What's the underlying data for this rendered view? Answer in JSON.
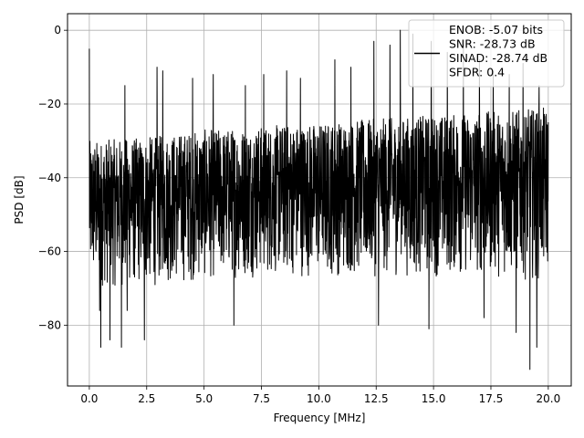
{
  "chart_data": {
    "type": "line",
    "title": "",
    "xlabel": "Frequency [MHz]",
    "ylabel": "PSD [dB]",
    "xlim": [
      -0.95,
      21.0
    ],
    "ylim": [
      -96.5,
      4.5
    ],
    "xticks": [
      0.0,
      2.5,
      5.0,
      7.5,
      10.0,
      12.5,
      15.0,
      17.5,
      20.0
    ],
    "xtick_labels": [
      "0.0",
      "2.5",
      "5.0",
      "7.5",
      "10.0",
      "12.5",
      "15.0",
      "17.5",
      "20.0"
    ],
    "yticks": [
      0,
      -20,
      -40,
      -60,
      -80
    ],
    "ytick_labels": [
      "0",
      "−20",
      "−40",
      "−60",
      "−80"
    ],
    "grid": true,
    "legend_position": "top-right",
    "series": [
      {
        "name": "ENOB: -5.07 bits\nSNR: -28.73 dB\nSINAD: -28.74 dB\nSFDR: 0.4",
        "color": "#000000",
        "x_range": [
          0.0,
          20.0
        ],
        "noise_envelope": {
          "x": [
            0.0,
            2.5,
            5.0,
            7.5,
            10.0,
            12.5,
            15.0,
            17.5,
            20.0
          ],
          "upper": [
            -30,
            -29,
            -27,
            -26,
            -25,
            -24,
            -23,
            -22,
            -21
          ],
          "lower": [
            -70,
            -70,
            -68,
            -67,
            -67,
            -67,
            -67,
            -67,
            -68
          ]
        },
        "peaks": [
          {
            "x": 0.0,
            "y": -5
          },
          {
            "x": 1.55,
            "y": -15
          },
          {
            "x": 2.95,
            "y": -10
          },
          {
            "x": 3.2,
            "y": -11
          },
          {
            "x": 4.5,
            "y": -13
          },
          {
            "x": 5.4,
            "y": -12
          },
          {
            "x": 6.8,
            "y": -15
          },
          {
            "x": 7.6,
            "y": -12
          },
          {
            "x": 8.6,
            "y": -11
          },
          {
            "x": 9.2,
            "y": -13
          },
          {
            "x": 10.7,
            "y": -8
          },
          {
            "x": 11.4,
            "y": -10
          },
          {
            "x": 12.4,
            "y": -3
          },
          {
            "x": 13.1,
            "y": -4
          },
          {
            "x": 13.55,
            "y": 0
          },
          {
            "x": 14.1,
            "y": -1
          },
          {
            "x": 14.9,
            "y": -3
          },
          {
            "x": 15.6,
            "y": -6
          },
          {
            "x": 16.3,
            "y": -4
          },
          {
            "x": 17.0,
            "y": -8
          },
          {
            "x": 17.6,
            "y": -11
          },
          {
            "x": 18.3,
            "y": -12
          },
          {
            "x": 18.9,
            "y": -9
          },
          {
            "x": 19.6,
            "y": -15
          }
        ],
        "dips": [
          {
            "x": 0.45,
            "y": -76
          },
          {
            "x": 0.5,
            "y": -86
          },
          {
            "x": 0.9,
            "y": -84
          },
          {
            "x": 1.4,
            "y": -86
          },
          {
            "x": 1.65,
            "y": -76
          },
          {
            "x": 2.4,
            "y": -84
          },
          {
            "x": 6.3,
            "y": -80
          },
          {
            "x": 12.6,
            "y": -80
          },
          {
            "x": 14.8,
            "y": -81
          },
          {
            "x": 17.2,
            "y": -78
          },
          {
            "x": 18.6,
            "y": -82
          },
          {
            "x": 19.2,
            "y": -92
          },
          {
            "x": 19.5,
            "y": -86
          }
        ]
      }
    ]
  }
}
